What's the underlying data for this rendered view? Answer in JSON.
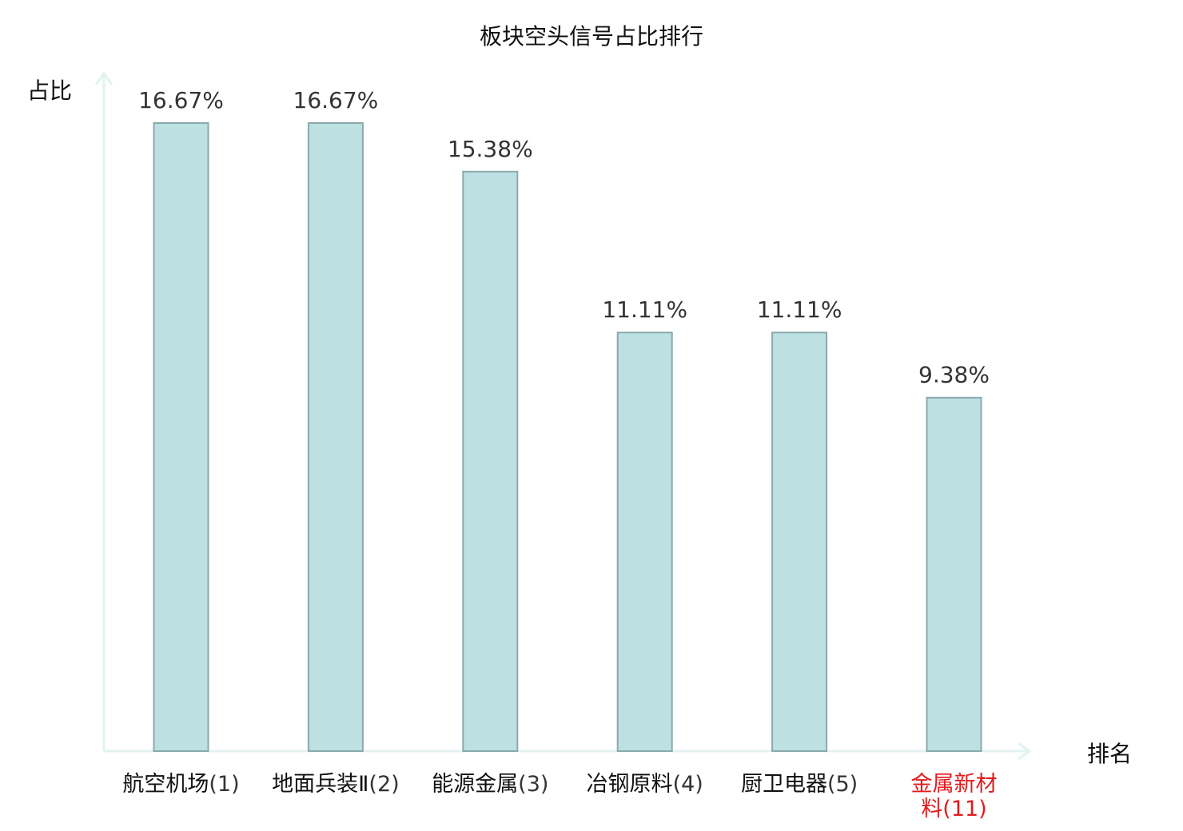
{
  "chart_data": {
    "type": "bar",
    "title": "板块空头信号占比排行",
    "ylabel": "占比",
    "xlabel": "排名",
    "ylim": [
      0,
      16.67
    ],
    "categories": [
      {
        "name": "航空机场",
        "rank": "(1)",
        "highlight": false
      },
      {
        "name": "地面兵装Ⅱ",
        "rank": "(2)",
        "highlight": false
      },
      {
        "name": "能源金属",
        "rank": "(3)",
        "highlight": false
      },
      {
        "name": "冶钢原料",
        "rank": "(4)",
        "highlight": false
      },
      {
        "name": "厨卫电器",
        "rank": "(5)",
        "highlight": false
      },
      {
        "name": "金属新材料",
        "rank": "(11)",
        "highlight": true
      }
    ],
    "values": [
      16.67,
      16.67,
      15.38,
      11.11,
      11.11,
      9.38
    ],
    "value_labels": [
      "16.67%",
      "16.67%",
      "15.38%",
      "11.11%",
      "11.11%",
      "9.38%"
    ],
    "colors": {
      "bar_fill": "#bde1e3",
      "bar_stroke": "#8aa9ab",
      "axis": "#e3f2f1",
      "highlight_text": "#e41a1c"
    },
    "grid": false
  }
}
